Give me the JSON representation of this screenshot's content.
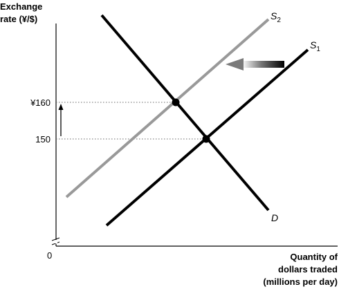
{
  "chart_data": {
    "type": "line",
    "title": "",
    "ylabel_lines": [
      "Exchange",
      "rate (¥/$)"
    ],
    "xlabel_lines": [
      "Quantity of",
      "dollars traded",
      "(millions per day)"
    ],
    "origin_label": "0",
    "y_ticks": [
      {
        "label": "¥160",
        "value": 160
      },
      {
        "label": "150",
        "value": 150
      }
    ],
    "series": [
      {
        "name": "S1",
        "label_main": "S",
        "label_sub": "1",
        "color": "#000000",
        "x": [
          0,
          10
        ],
        "y": [
          0,
          10
        ]
      },
      {
        "name": "S2",
        "label_main": "S",
        "label_sub": "2",
        "color": "#999999",
        "x": [
          0,
          10
        ],
        "y": [
          0,
          10
        ]
      },
      {
        "name": "D",
        "label_main": "D",
        "label_sub": "",
        "color": "#000000",
        "x": [
          0,
          10
        ],
        "y": [
          0,
          10
        ]
      }
    ],
    "equilibria": [
      {
        "curves": [
          "S1",
          "D"
        ],
        "y": 150
      },
      {
        "curves": [
          "S2",
          "D"
        ],
        "y": 160
      }
    ],
    "annotations": {
      "shift_arrow": "left",
      "price_arrow": "up",
      "axis_break": true
    },
    "colors": {
      "line_dark": "#000000",
      "line_gray": "#999999",
      "guide": "#666666"
    }
  }
}
